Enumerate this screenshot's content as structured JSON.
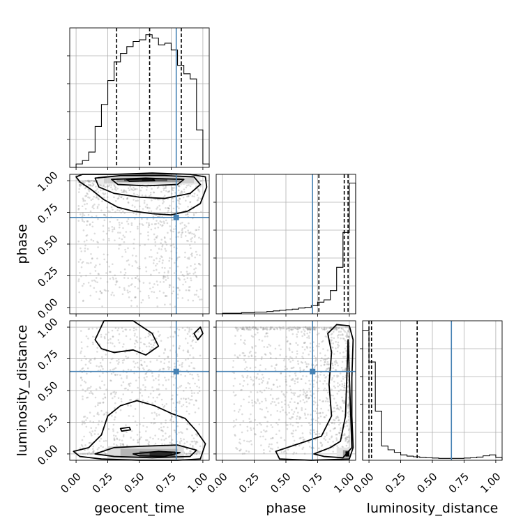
{
  "chart_data": {
    "type": "corner",
    "parameters": [
      "geocent_time",
      "phase",
      "luminosity_distance"
    ],
    "truths": {
      "geocent_time": 0.79,
      "phase": 0.71,
      "luminosity_distance": 0.65
    },
    "truth_color": "#4682b4",
    "contour_color": "#000000",
    "grid": true,
    "tick_values": [
      0.0,
      0.25,
      0.5,
      0.75,
      1.0
    ],
    "tick_labels": [
      "0.00",
      "0.25",
      "0.50",
      "0.75",
      "1.00"
    ],
    "histograms": {
      "geocent_time": {
        "bin_edges": [
          -0.05,
          0.0,
          0.05,
          0.1,
          0.15,
          0.2,
          0.25,
          0.3,
          0.35,
          0.4,
          0.45,
          0.5,
          0.55,
          0.6,
          0.65,
          0.7,
          0.75,
          0.8,
          0.85,
          0.9,
          0.95,
          1.0,
          1.05
        ],
        "counts": [
          0,
          2,
          4,
          9,
          24,
          37,
          51,
          62,
          67,
          71,
          74,
          75,
          78,
          76,
          72,
          73,
          69,
          60,
          55,
          52,
          22,
          2
        ],
        "quantiles": [
          0.32,
          0.58,
          0.83
        ],
        "ylim": [
          0,
          82
        ]
      },
      "phase": {
        "bin_edges": [
          -0.05,
          0.0,
          0.05,
          0.1,
          0.15,
          0.2,
          0.25,
          0.3,
          0.35,
          0.4,
          0.45,
          0.5,
          0.55,
          0.6,
          0.65,
          0.7,
          0.75,
          0.8,
          0.85,
          0.9,
          0.95,
          1.0,
          1.05
        ],
        "counts": [
          0,
          1,
          1,
          1,
          2,
          2,
          3,
          3,
          4,
          5,
          6,
          7,
          8,
          10,
          11,
          14,
          20,
          24,
          40,
          80,
          140,
          225
        ],
        "quantiles": [
          0.76,
          0.96,
          0.99
        ],
        "ylim": [
          0,
          240
        ]
      },
      "luminosity_distance": {
        "bin_edges": [
          -0.05,
          0.0,
          0.05,
          0.1,
          0.15,
          0.2,
          0.25,
          0.3,
          0.35,
          0.4,
          0.45,
          0.5,
          0.55,
          0.6,
          0.65,
          0.7,
          0.75,
          0.8,
          0.85,
          0.9,
          0.95,
          1.0,
          1.05
        ],
        "counts": [
          410,
          310,
          155,
          45,
          33,
          25,
          17,
          13,
          11,
          9,
          8,
          7,
          6,
          6,
          6,
          6,
          7,
          8,
          10,
          14,
          17,
          9
        ],
        "quantiles": [
          0.0,
          0.02,
          0.38
        ],
        "ylim": [
          0,
          440
        ]
      }
    },
    "scatter_pairs": [
      {
        "x": "geocent_time",
        "y": "phase",
        "xlim": [
          -0.05,
          1.05
        ],
        "ylim": [
          -0.05,
          1.05
        ]
      },
      {
        "x": "geocent_time",
        "y": "luminosity_distance",
        "xlim": [
          -0.05,
          1.05
        ],
        "ylim": [
          -0.05,
          1.05
        ]
      },
      {
        "x": "phase",
        "y": "luminosity_distance",
        "xlim": [
          -0.05,
          1.05
        ],
        "ylim": [
          -0.05,
          1.05
        ]
      }
    ]
  }
}
